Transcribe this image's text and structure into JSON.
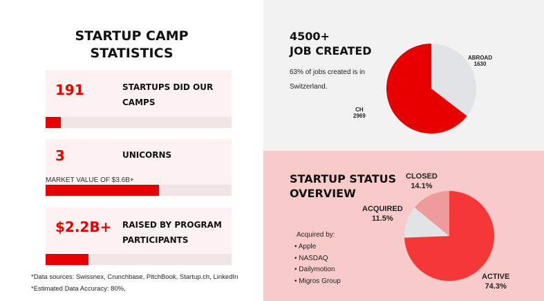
{
  "left": {
    "title_line1": "STARTUP CAMP",
    "title_line2": "STATISTICS",
    "cards": [
      {
        "value": "191",
        "label_line1": "STARTUPS DID OUR",
        "label_line2": "CAMPS",
        "progress_pct": 8
      },
      {
        "value": "3",
        "label_line1": "UNICORNS",
        "sub": "MARKET VALUE OF $3.6B+",
        "progress_pct": 61
      },
      {
        "value": "$2.2B+",
        "label_line1": "RAISED BY PROGRAM",
        "label_line2": "PARTICIPANTS",
        "progress_pct": 23
      }
    ],
    "footnotes": [
      "*Data sources: Swissnex, Crunchbase, PitchBook, Startup.ch, LinkedIn",
      "*Estimated Data Accuracy: 80%,"
    ]
  },
  "jobs": {
    "title_line1": "4500+",
    "title_line2": "JOB CREATED",
    "desc_line1": "63% of jobs created is in",
    "desc_line2": "Switzerland.",
    "chart_data": {
      "type": "pie",
      "slices": [
        {
          "label": "ABROAD",
          "value": 1630,
          "color": "#e2e3e7"
        },
        {
          "label": "CH",
          "value": 2969,
          "color": "#e60000"
        }
      ]
    }
  },
  "status": {
    "title_line1": "STARTUP STATUS",
    "title_line2": "OVERVIEW",
    "acquired_by_label": "Acquired by:",
    "acquirers": [
      "Apple",
      "NASDAQ",
      "Dailymotion",
      "Migros Group"
    ],
    "chart_data": {
      "type": "pie",
      "slices": [
        {
          "label": "ACTIVE",
          "value": 74.3,
          "display": "74.3%",
          "color": "#f63737"
        },
        {
          "label": "ACQUIRED",
          "value": 11.5,
          "display": "11.5%",
          "color": "#e2e3e7"
        },
        {
          "label": "CLOSED",
          "value": 14.1,
          "display": "14.1%",
          "color": "#ef9b9b"
        }
      ]
    }
  }
}
